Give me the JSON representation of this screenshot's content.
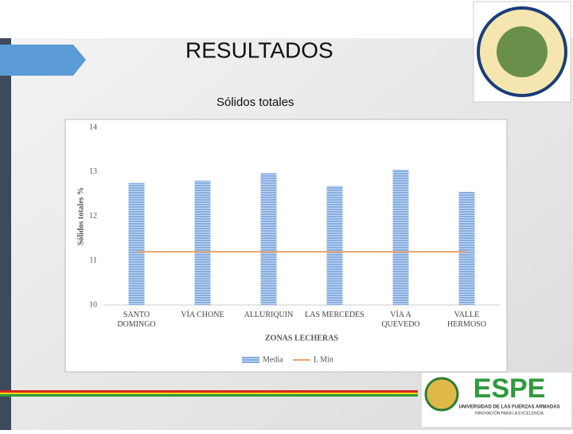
{
  "slide": {
    "title": "RESULTADOS",
    "subtitle": "Sólidos totales",
    "logo_text": "ESPE",
    "logo_caption": "UNIVERSIDAD DE LAS FUERZAS ARMADAS",
    "logo_motto": "INNOVACIÓN PARA LA EXCELENCIA"
  },
  "chart_data": {
    "type": "bar",
    "categories": [
      "SANTO\nDOMINGO",
      "VÍA CHONE",
      "ALLURIQUIN",
      "LAS MERCEDES",
      "VÍA A\nQUEVEDO",
      "VALLE\nHERMOSO"
    ],
    "series": [
      {
        "name": "Media",
        "type": "bar",
        "color": "#86aee0",
        "values": [
          12.75,
          12.8,
          12.97,
          12.68,
          13.05,
          12.55
        ]
      },
      {
        "name": "L Min",
        "type": "line",
        "color": "#e9a46f",
        "values": [
          11.2,
          11.2,
          11.2,
          11.2,
          11.2,
          11.2
        ]
      }
    ],
    "ylim": [
      10,
      14
    ],
    "yticks": [
      10,
      11,
      12,
      13,
      14
    ],
    "grid": false,
    "y_label": "Sólidos totales %",
    "x_label": "ZONAS LECHERAS",
    "legend": "bottom"
  }
}
